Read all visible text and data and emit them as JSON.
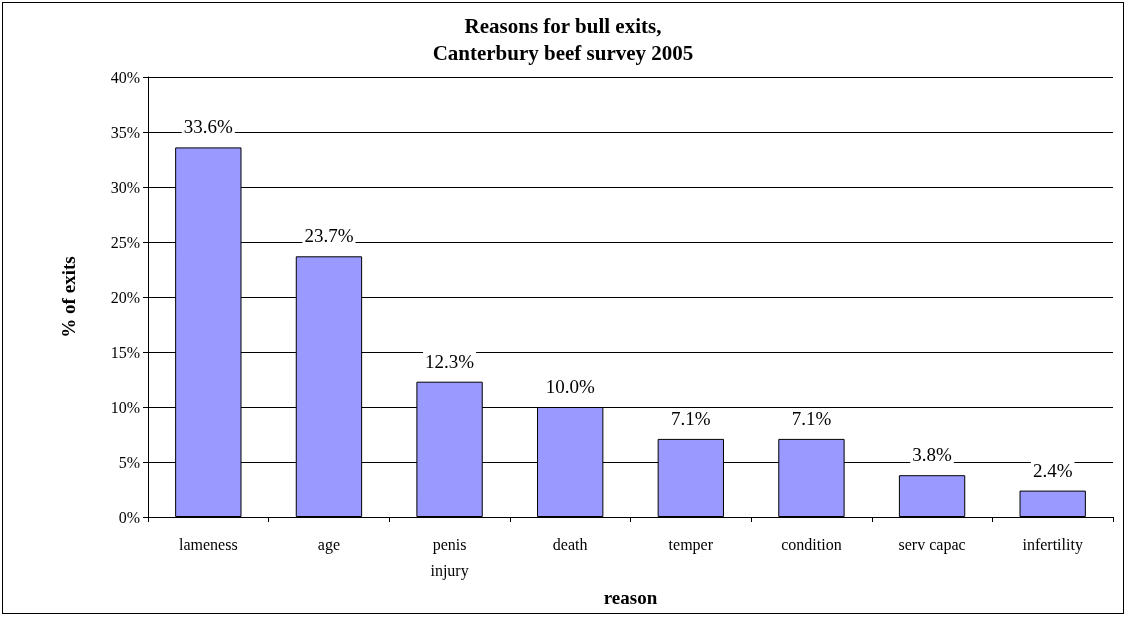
{
  "chart_data": {
    "type": "bar",
    "title": "Reasons for bull exits,\nCanterbury beef survey 2005",
    "xlabel": "reason",
    "ylabel": "% of exits",
    "categories": [
      "lameness",
      "age",
      "penis\ninjury",
      "death",
      "temper",
      "condition",
      "serv capac",
      "infertility"
    ],
    "values": [
      33.6,
      23.7,
      12.3,
      10.0,
      7.1,
      7.1,
      3.8,
      2.4
    ],
    "value_labels": [
      "33.6%",
      "23.7%",
      "12.3%",
      "10.0%",
      "7.1%",
      "7.1%",
      "3.8%",
      "2.4%"
    ],
    "color": "#9999ff",
    "ylim": [
      0,
      40
    ],
    "yticks": [
      {
        "value": 0,
        "label": "0%"
      },
      {
        "value": 5,
        "label": "5%"
      },
      {
        "value": 10,
        "label": "10%"
      },
      {
        "value": 15,
        "label": "15%"
      },
      {
        "value": 20,
        "label": "20%"
      },
      {
        "value": 25,
        "label": "25%"
      },
      {
        "value": 30,
        "label": "30%"
      },
      {
        "value": 35,
        "label": "35%"
      },
      {
        "value": 40,
        "label": "40%"
      }
    ],
    "grid": "y"
  }
}
